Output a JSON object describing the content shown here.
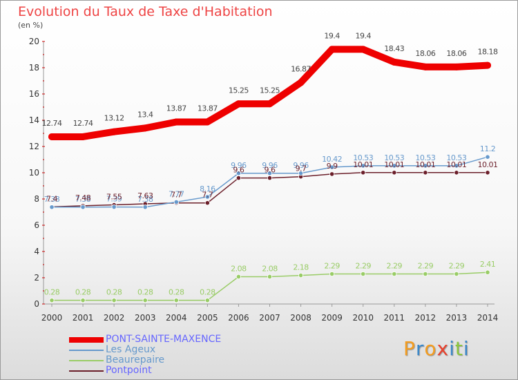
{
  "title": "Evolution du Taux de Taxe d'Habitation",
  "subtitle": "(en %)",
  "logo": {
    "letters": [
      "P",
      "r",
      "o",
      "x",
      "i",
      "t",
      "i"
    ],
    "colors": [
      "#f39c1f",
      "#3a87c8",
      "#f39c1f",
      "#e8412c",
      "#3a87c8",
      "#8cc63f",
      "#3a87c8"
    ]
  },
  "chart_data": {
    "type": "line",
    "title": "Evolution du Taux de Taxe d'Habitation",
    "ylabel": "(en %)",
    "xlabel": "",
    "ylim": [
      0,
      20
    ],
    "yticks": [
      "0",
      "2",
      "4",
      "6",
      "8",
      "10",
      "12",
      "14",
      "16",
      "18",
      "20"
    ],
    "categories": [
      "2000",
      "2001",
      "2002",
      "2003",
      "2004",
      "2005",
      "2006",
      "2007",
      "2008",
      "2009",
      "2010",
      "2011",
      "2012",
      "2013",
      "2014"
    ],
    "grid": false,
    "legend": "bottom-left",
    "series": [
      {
        "name": "PONT-SAINTE-MAXENCE",
        "color": "#ee0000",
        "labelColor": "#6666ff",
        "values": [
          12.74,
          12.74,
          13.12,
          13.4,
          13.87,
          13.87,
          15.25,
          15.25,
          16.87,
          19.4,
          19.4,
          18.43,
          18.06,
          18.06,
          18.18
        ],
        "labels": [
          "12.74",
          "12.74",
          "13.12",
          "13.4",
          "13.87",
          "13.87",
          "15.25",
          "15.25",
          "16.87",
          "19.4",
          "19.4",
          "18.43",
          "18.06",
          "18.06",
          "18.18"
        ]
      },
      {
        "name": "Les Ageux",
        "color": "#6699cc",
        "labelColor": "#6699cc",
        "values": [
          7.38,
          7.38,
          7.39,
          7.38,
          7.77,
          8.16,
          9.96,
          9.96,
          9.96,
          10.42,
          10.53,
          10.53,
          10.53,
          10.53,
          11.2
        ],
        "labels": [
          "7.38",
          "7.38",
          "7.39",
          "7.38",
          "7.77",
          "8.16",
          "9.96",
          "9.96",
          "9.96",
          "10.42",
          "10.53",
          "10.53",
          "10.53",
          "10.53",
          "11.2"
        ]
      },
      {
        "name": "Beaurepaire",
        "color": "#99cc66",
        "labelColor": "#99cc66",
        "values": [
          0.28,
          0.28,
          0.28,
          0.28,
          0.28,
          0.28,
          2.08,
          2.08,
          2.18,
          2.29,
          2.29,
          2.29,
          2.29,
          2.29,
          2.41
        ],
        "labels": [
          "0.28",
          "0.28",
          "0.28",
          "0.28",
          "0.28",
          "0.28",
          "2.08",
          "2.08",
          "2.18",
          "2.29",
          "2.29",
          "2.29",
          "2.29",
          "2.29",
          "2.41"
        ]
      },
      {
        "name": "Pontpoint",
        "color": "#6b1f2a",
        "labelColor": "#6b1f2a",
        "values": [
          7.4,
          7.48,
          7.55,
          7.63,
          7.7,
          7.7,
          9.6,
          9.6,
          9.7,
          9.9,
          10.01,
          10.01,
          10.01,
          10.01,
          10.01
        ],
        "labels": [
          "7.4",
          "7.48",
          "7.55",
          "7.63",
          "7.7",
          "7.7",
          "9.6",
          "9.6",
          "9.7",
          "9.9",
          "10.01",
          "10.01",
          "10.01",
          "10.01",
          "10.01"
        ]
      }
    ]
  }
}
